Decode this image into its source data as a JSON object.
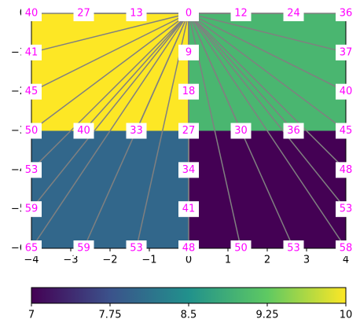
{
  "chart_data": {
    "type": "heatmap",
    "x_edges": [
      -4,
      0,
      4
    ],
    "y_edges": [
      0,
      -3,
      -6
    ],
    "z": [
      [
        10,
        9
      ],
      [
        8,
        7
      ]
    ],
    "colormap": "viridis",
    "clim": [
      7,
      10
    ],
    "colorbar_ticks": [
      7,
      7.75,
      8.5,
      9.25,
      10
    ],
    "xlim": [
      -4,
      4
    ],
    "ylim": [
      -6,
      0
    ],
    "xticks": [
      {
        "value": -4,
        "label": "−4"
      },
      {
        "value": -3,
        "label": "−3"
      },
      {
        "value": -2,
        "label": "−2"
      },
      {
        "value": -1,
        "label": "−1"
      },
      0,
      1,
      2,
      3,
      4
    ],
    "yticks": [
      0,
      {
        "value": -1,
        "label": "−1"
      },
      {
        "value": -2,
        "label": "−2"
      },
      {
        "value": -3,
        "label": "−3"
      },
      {
        "value": -4,
        "label": "−4"
      },
      {
        "value": -5,
        "label": "−5"
      },
      {
        "value": -6,
        "label": "−6"
      }
    ],
    "line_color": "#808080",
    "label_color": "#ff00ff",
    "points": [
      {
        "x": -4,
        "y": 0,
        "label": 40
      },
      {
        "x": -2.67,
        "y": 0,
        "label": 27
      },
      {
        "x": -1.33,
        "y": 0,
        "label": 13
      },
      {
        "x": 0,
        "y": 0,
        "label": 0
      },
      {
        "x": 1.33,
        "y": 0,
        "label": 12
      },
      {
        "x": 2.67,
        "y": 0,
        "label": 24
      },
      {
        "x": 4,
        "y": 0,
        "label": 36
      },
      {
        "x": -4,
        "y": -1,
        "label": 41
      },
      {
        "x": 0,
        "y": -1,
        "label": 9
      },
      {
        "x": 4,
        "y": -1,
        "label": 37
      },
      {
        "x": -4,
        "y": -2,
        "label": 45
      },
      {
        "x": 0,
        "y": -2,
        "label": 18
      },
      {
        "x": 4,
        "y": -2,
        "label": 40
      },
      {
        "x": -4,
        "y": -3,
        "label": 50
      },
      {
        "x": -2.67,
        "y": -3,
        "label": 40
      },
      {
        "x": -1.33,
        "y": -3,
        "label": 33
      },
      {
        "x": 0,
        "y": -3,
        "label": 27
      },
      {
        "x": 1.33,
        "y": -3,
        "label": 30
      },
      {
        "x": 2.67,
        "y": -3,
        "label": 36
      },
      {
        "x": 4,
        "y": -3,
        "label": 45
      },
      {
        "x": -4,
        "y": -4,
        "label": 53
      },
      {
        "x": 0,
        "y": -4,
        "label": 34
      },
      {
        "x": 4,
        "y": -4,
        "label": 48
      },
      {
        "x": -4,
        "y": -5,
        "label": 59
      },
      {
        "x": 0,
        "y": -5,
        "label": 41
      },
      {
        "x": 4,
        "y": -5,
        "label": 53
      },
      {
        "x": -4,
        "y": -6,
        "label": 65
      },
      {
        "x": -2.67,
        "y": -6,
        "label": 59
      },
      {
        "x": -1.33,
        "y": -6,
        "label": 53
      },
      {
        "x": 0,
        "y": -6,
        "label": 48
      },
      {
        "x": 1.33,
        "y": -6,
        "label": 50
      },
      {
        "x": 2.67,
        "y": -6,
        "label": 53
      },
      {
        "x": 4,
        "y": -6,
        "label": 58
      }
    ]
  }
}
